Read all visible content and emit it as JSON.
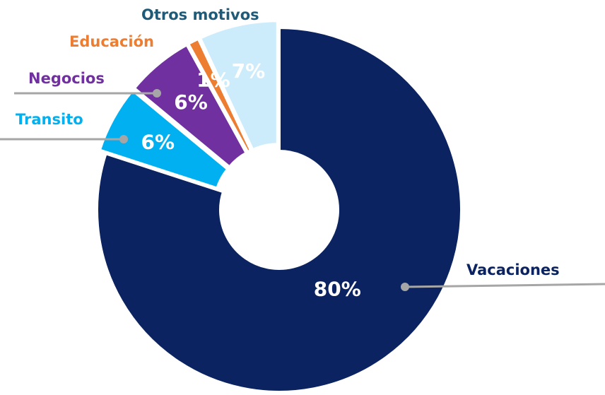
{
  "chart_data": {
    "type": "donut",
    "categories": [
      "Vacaciones",
      "Transito",
      "Negocios",
      "Educación",
      "Otros motivos"
    ],
    "values": [
      80,
      6,
      6,
      1,
      7
    ],
    "value_labels": [
      "80%",
      "6%",
      "6%",
      "1%",
      "7%"
    ],
    "colors": [
      "#0b2360",
      "#00b0f0",
      "#7030a0",
      "#ed7d31",
      "#cdecfb"
    ],
    "label_colors": [
      "#0b2360",
      "#00b0f0",
      "#7030a0",
      "#ed7d31",
      "#1f5b78"
    ]
  }
}
